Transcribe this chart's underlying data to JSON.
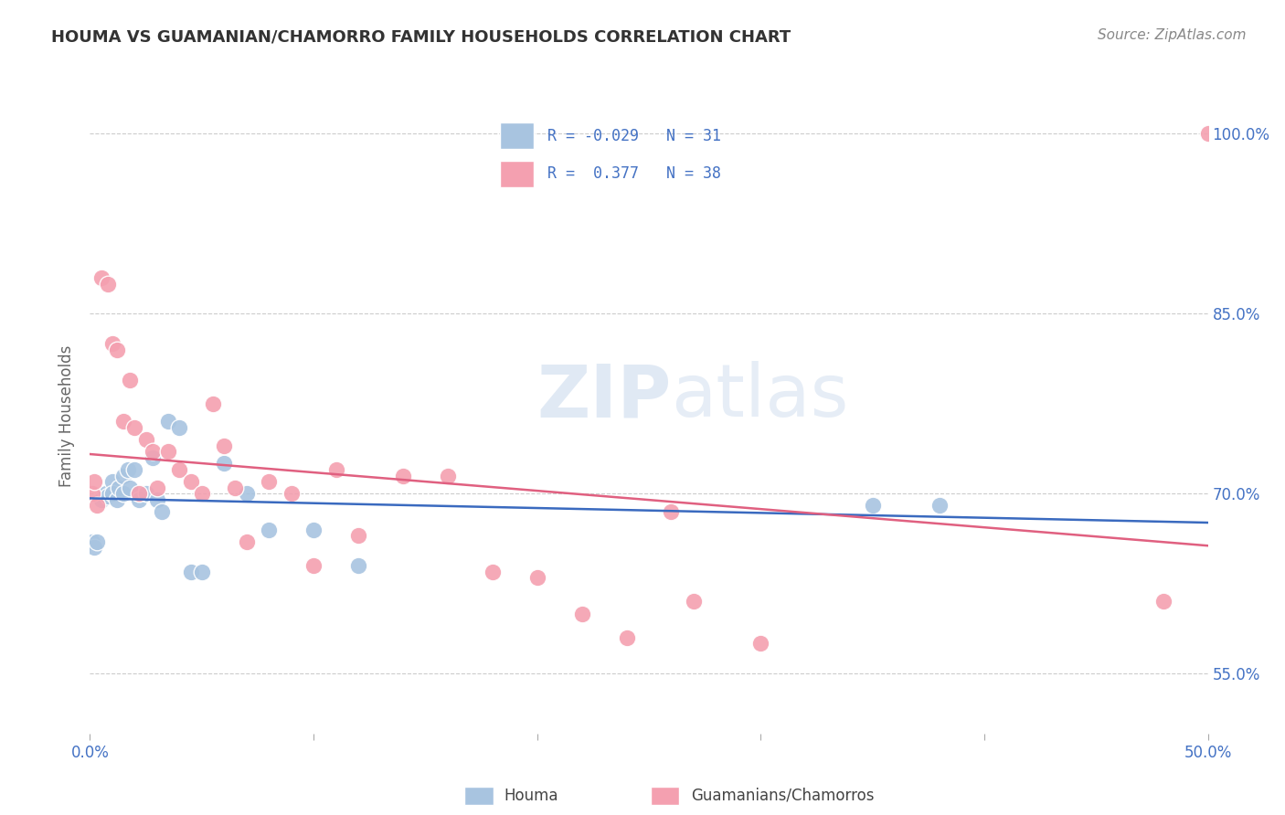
{
  "title": "HOUMA VS GUAMANIAN/CHAMORRO FAMILY HOUSEHOLDS CORRELATION CHART",
  "source": "Source: ZipAtlas.com",
  "ylabel": "Family Households",
  "xmin": 0.0,
  "xmax": 0.5,
  "ymin": 0.5,
  "ymax": 1.03,
  "x_ticks": [
    0.0,
    0.1,
    0.2,
    0.3,
    0.4,
    0.5
  ],
  "x_tick_labels": [
    "0.0%",
    "",
    "",
    "",
    "",
    "50.0%"
  ],
  "y_ticks": [
    0.55,
    0.7,
    0.85,
    1.0
  ],
  "y_tick_labels": [
    "55.0%",
    "70.0%",
    "85.0%",
    "100.0%"
  ],
  "houma_R": -0.029,
  "houma_N": 31,
  "guam_R": 0.377,
  "guam_N": 38,
  "houma_color": "#a8c4e0",
  "guam_color": "#f4a0b0",
  "houma_line_color": "#3a6abf",
  "guam_line_color": "#e06080",
  "watermark_zip": "ZIP",
  "watermark_atlas": "atlas",
  "houma_x": [
    0.001,
    0.002,
    0.003,
    0.005,
    0.007,
    0.008,
    0.01,
    0.01,
    0.012,
    0.013,
    0.015,
    0.015,
    0.017,
    0.018,
    0.02,
    0.022,
    0.025,
    0.028,
    0.03,
    0.032,
    0.035,
    0.04,
    0.045,
    0.05,
    0.06,
    0.07,
    0.08,
    0.1,
    0.12,
    0.35,
    0.38
  ],
  "houma_y": [
    0.66,
    0.655,
    0.66,
    0.695,
    0.7,
    0.698,
    0.71,
    0.7,
    0.695,
    0.705,
    0.715,
    0.7,
    0.72,
    0.705,
    0.72,
    0.695,
    0.7,
    0.73,
    0.695,
    0.685,
    0.76,
    0.755,
    0.635,
    0.635,
    0.725,
    0.7,
    0.67,
    0.67,
    0.64,
    0.69,
    0.69
  ],
  "guam_x": [
    0.001,
    0.002,
    0.003,
    0.005,
    0.008,
    0.01,
    0.012,
    0.015,
    0.018,
    0.02,
    0.022,
    0.025,
    0.028,
    0.03,
    0.035,
    0.04,
    0.045,
    0.05,
    0.055,
    0.06,
    0.065,
    0.07,
    0.08,
    0.09,
    0.1,
    0.11,
    0.12,
    0.14,
    0.16,
    0.18,
    0.2,
    0.22,
    0.24,
    0.26,
    0.27,
    0.3,
    0.48,
    0.5
  ],
  "guam_y": [
    0.7,
    0.71,
    0.69,
    0.88,
    0.875,
    0.825,
    0.82,
    0.76,
    0.795,
    0.755,
    0.7,
    0.745,
    0.735,
    0.705,
    0.735,
    0.72,
    0.71,
    0.7,
    0.775,
    0.74,
    0.705,
    0.66,
    0.71,
    0.7,
    0.64,
    0.72,
    0.665,
    0.715,
    0.715,
    0.635,
    0.63,
    0.6,
    0.58,
    0.685,
    0.61,
    0.575,
    0.61,
    1.0
  ]
}
